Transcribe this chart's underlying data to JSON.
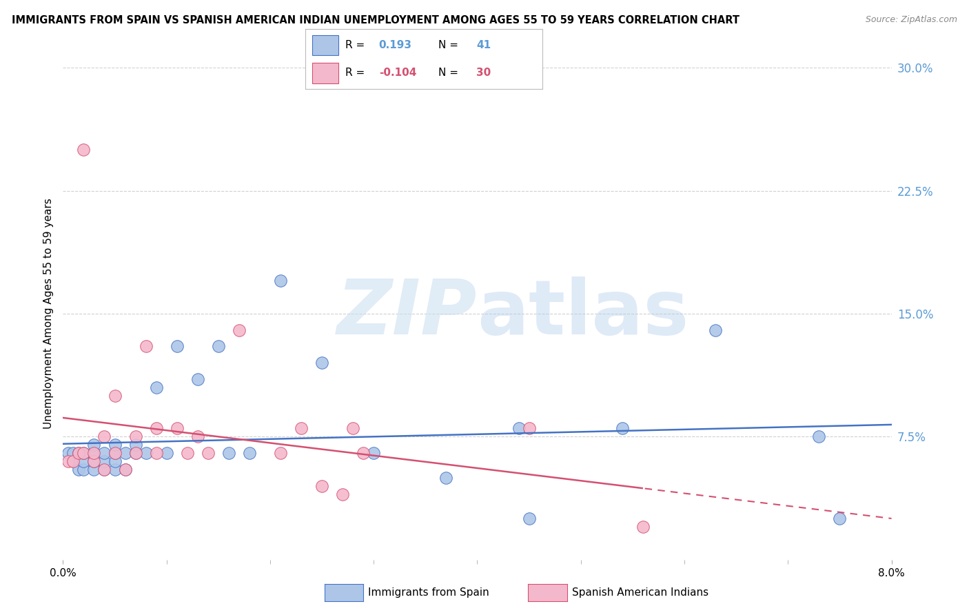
{
  "title": "IMMIGRANTS FROM SPAIN VS SPANISH AMERICAN INDIAN UNEMPLOYMENT AMONG AGES 55 TO 59 YEARS CORRELATION CHART",
  "source": "Source: ZipAtlas.com",
  "ylabel": "Unemployment Among Ages 55 to 59 years",
  "xlim": [
    0.0,
    0.08
  ],
  "ylim": [
    0.0,
    0.3
  ],
  "xticks": [
    0.0,
    0.08
  ],
  "xticklabels": [
    "0.0%",
    "8.0%"
  ],
  "yticks": [
    0.0,
    0.075,
    0.15,
    0.225,
    0.3
  ],
  "yticklabels": [
    "",
    "7.5%",
    "15.0%",
    "22.5%",
    "30.0%"
  ],
  "blue_R": 0.193,
  "blue_N": 41,
  "pink_R": -0.104,
  "pink_N": 30,
  "blue_color": "#adc6e8",
  "pink_color": "#f4b8cc",
  "blue_line_color": "#4472c4",
  "pink_line_color": "#d45070",
  "right_axis_color": "#5b9bd5",
  "blue_x": [
    0.0005,
    0.001,
    0.001,
    0.0015,
    0.0015,
    0.002,
    0.002,
    0.002,
    0.003,
    0.003,
    0.003,
    0.003,
    0.004,
    0.004,
    0.004,
    0.005,
    0.005,
    0.005,
    0.005,
    0.006,
    0.006,
    0.007,
    0.007,
    0.008,
    0.009,
    0.01,
    0.011,
    0.013,
    0.015,
    0.016,
    0.018,
    0.021,
    0.025,
    0.03,
    0.037,
    0.044,
    0.045,
    0.054,
    0.063,
    0.073,
    0.075
  ],
  "blue_y": [
    0.065,
    0.06,
    0.065,
    0.055,
    0.065,
    0.055,
    0.06,
    0.065,
    0.055,
    0.06,
    0.065,
    0.07,
    0.055,
    0.06,
    0.065,
    0.055,
    0.06,
    0.065,
    0.07,
    0.055,
    0.065,
    0.065,
    0.07,
    0.065,
    0.105,
    0.065,
    0.13,
    0.11,
    0.13,
    0.065,
    0.065,
    0.17,
    0.12,
    0.065,
    0.05,
    0.08,
    0.025,
    0.08,
    0.14,
    0.075,
    0.025
  ],
  "pink_x": [
    0.0005,
    0.001,
    0.0015,
    0.002,
    0.002,
    0.003,
    0.003,
    0.004,
    0.004,
    0.005,
    0.005,
    0.006,
    0.007,
    0.007,
    0.008,
    0.009,
    0.009,
    0.011,
    0.012,
    0.013,
    0.014,
    0.017,
    0.021,
    0.023,
    0.025,
    0.027,
    0.028,
    0.029,
    0.045,
    0.056
  ],
  "pink_y": [
    0.06,
    0.06,
    0.065,
    0.25,
    0.065,
    0.06,
    0.065,
    0.075,
    0.055,
    0.1,
    0.065,
    0.055,
    0.075,
    0.065,
    0.13,
    0.08,
    0.065,
    0.08,
    0.065,
    0.075,
    0.065,
    0.14,
    0.065,
    0.08,
    0.045,
    0.04,
    0.08,
    0.065,
    0.08,
    0.02
  ],
  "background_color": "#ffffff",
  "grid_color": "#d0d0d0",
  "legend_blue_R_color": "#5b9bd5",
  "legend_pink_R_color": "#d45070"
}
